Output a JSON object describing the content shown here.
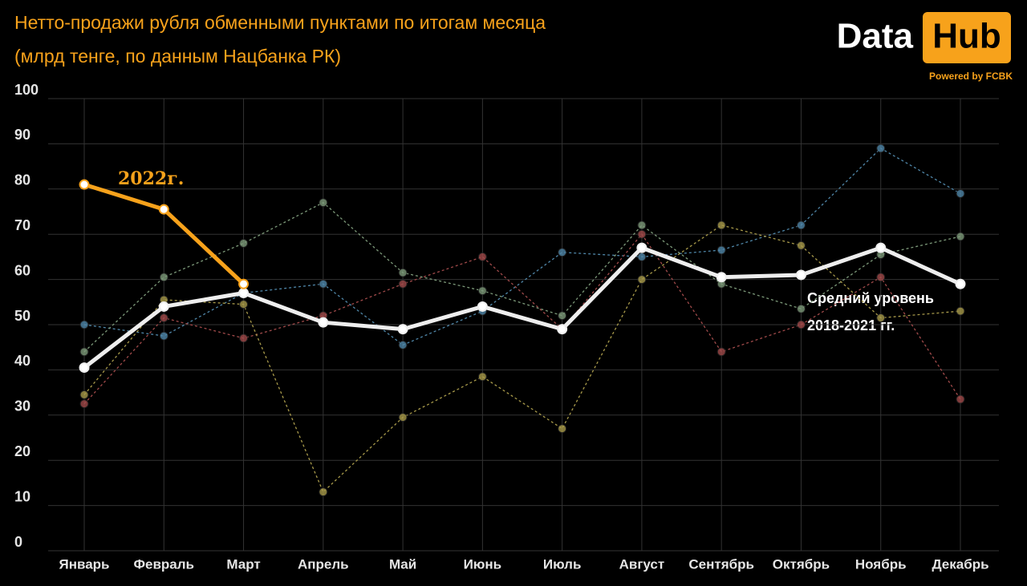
{
  "chart_data": {
    "type": "line",
    "title": "Нетто-продажи рубля обменными пунктами по итогам месяца",
    "subtitle": "(млрд тенге, по данным Нацбанка РК)",
    "logo": {
      "left": "Data",
      "right": "Hub",
      "tagline": "Powered by FCBK"
    },
    "categories": [
      "Январь",
      "Февраль",
      "Март",
      "Апрель",
      "Май",
      "Июнь",
      "Июль",
      "Август",
      "Сентябрь",
      "Октябрь",
      "Ноябрь",
      "Декабрь"
    ],
    "series": [
      {
        "color": "#4f86a8",
        "line_style": "dashed",
        "values": [
          50,
          47.5,
          57,
          59,
          45.5,
          53,
          66,
          65,
          66.5,
          72,
          89,
          79
        ]
      },
      {
        "color": "#7d9a7a",
        "line_style": "dashed",
        "values": [
          44,
          60.5,
          68,
          77,
          61.5,
          57.5,
          52,
          72,
          59,
          53.5,
          65.5,
          69.5
        ]
      },
      {
        "color": "#a04a4a",
        "line_style": "dashed",
        "values": [
          32.5,
          51.5,
          47,
          52,
          59,
          65,
          49,
          70,
          44,
          50,
          60.5,
          33.5
        ]
      },
      {
        "color": "#a89a4a",
        "line_style": "dashed",
        "values": [
          34.5,
          55.5,
          54.5,
          13,
          29.5,
          38.5,
          27,
          60,
          72,
          67.5,
          51.5,
          53
        ]
      },
      {
        "color": "#eeeeee",
        "line_style": "solid",
        "values": [
          40.5,
          54,
          57,
          50.5,
          49,
          54,
          49,
          67,
          60.5,
          61,
          67,
          59
        ]
      },
      {
        "name": "2022г.",
        "color": "#f7a21b",
        "line_style": "solid",
        "values": [
          81,
          75.5,
          59,
          null,
          null,
          null,
          null,
          null,
          null,
          null,
          null,
          null
        ]
      }
    ],
    "annotations": [
      "Средний уровень",
      "2018-2021 гг."
    ],
    "ylim": [
      0,
      100
    ],
    "yticks": [
      0,
      10,
      20,
      30,
      40,
      50,
      60,
      70,
      80,
      90,
      100
    ],
    "grid": true
  }
}
